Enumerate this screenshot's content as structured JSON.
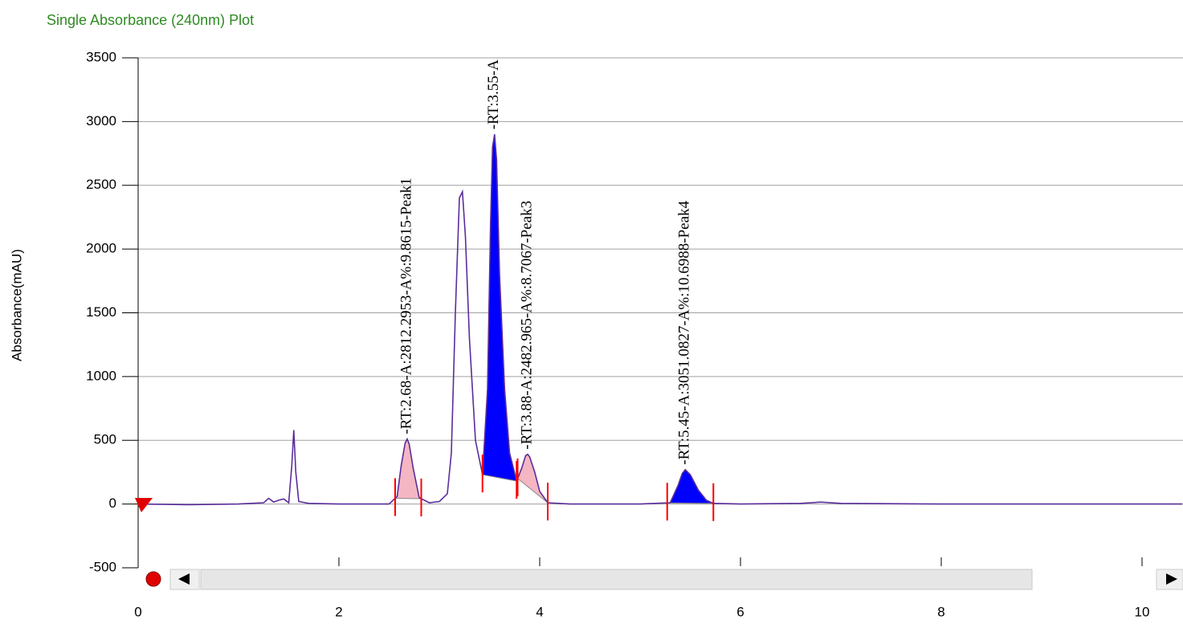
{
  "chart_data": {
    "type": "line",
    "title": "Single Absorbance (240nm) Plot",
    "y_label": "Absorbance(mAU)",
    "xlim": [
      0,
      10.4
    ],
    "xticks": [
      0,
      2,
      4,
      6,
      8,
      10
    ],
    "ylim": [
      -500,
      3500
    ],
    "yticks": [
      -500,
      0,
      500,
      1000,
      1500,
      2000,
      2500,
      3000,
      3500
    ],
    "grid": true,
    "color": "#5a2d9c",
    "x": [
      0,
      0.5,
      1.0,
      1.25,
      1.3,
      1.35,
      1.4,
      1.45,
      1.5,
      1.53,
      1.55,
      1.57,
      1.6,
      1.7,
      2.0,
      2.5,
      2.58,
      2.62,
      2.66,
      2.68,
      2.7,
      2.74,
      2.8,
      2.9,
      3.0,
      3.08,
      3.12,
      3.16,
      3.2,
      3.23,
      3.26,
      3.3,
      3.36,
      3.43,
      3.48,
      3.51,
      3.53,
      3.55,
      3.57,
      3.6,
      3.65,
      3.7,
      3.77,
      3.82,
      3.86,
      3.88,
      3.9,
      3.95,
      4.0,
      4.08,
      4.3,
      5.0,
      5.3,
      5.38,
      5.42,
      5.45,
      5.5,
      5.58,
      5.66,
      5.73,
      6.0,
      6.6,
      6.8,
      7.0,
      8.0,
      9.0,
      10.0,
      10.4
    ],
    "values": [
      0,
      -5,
      0,
      10,
      45,
      15,
      30,
      40,
      10,
      300,
      580,
      250,
      20,
      5,
      0,
      0,
      60,
      300,
      480,
      510,
      470,
      280,
      50,
      10,
      20,
      80,
      400,
      1500,
      2400,
      2450,
      2100,
      1300,
      500,
      230,
      900,
      2200,
      2800,
      2900,
      2700,
      1800,
      900,
      400,
      180,
      280,
      380,
      390,
      370,
      250,
      100,
      10,
      0,
      0,
      10,
      150,
      240,
      270,
      230,
      110,
      30,
      5,
      0,
      5,
      15,
      5,
      0,
      0,
      0,
      0
    ],
    "peaks": [
      {
        "label": "-RT:2.68-A:2812.2953-A%:9.8615-Peak1",
        "rt": 2.68,
        "start": 2.56,
        "end": 2.82,
        "color": "#f4b6c2"
      },
      {
        "label": "-RT:3.55-A",
        "rt": 3.55,
        "start": 3.43,
        "end": 3.77,
        "color": "#0000ff"
      },
      {
        "label": "-RT:3.88-A:2482.965-A%:8.7067-Peak3",
        "rt": 3.88,
        "start": 3.78,
        "end": 4.08,
        "color": "#f4b6c2"
      },
      {
        "label": "-RT:5.45-A:3051.0827-A%:10.6988-Peak4",
        "rt": 5.45,
        "start": 5.27,
        "end": 5.73,
        "color": "#0000ff"
      }
    ]
  }
}
